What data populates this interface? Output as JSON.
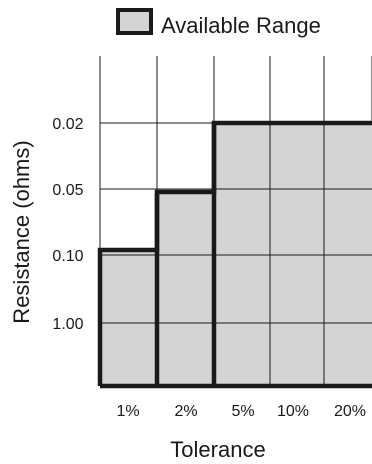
{
  "chart_data": {
    "type": "bar",
    "title": "",
    "legend": [
      "Available Range"
    ],
    "legend_placement": "top-center",
    "xlabel": "Tolerance",
    "ylabel": "Resistance (ohms)",
    "categories": [
      "1%",
      "2%",
      "5%",
      "10%",
      "20%"
    ],
    "y_tick_labels": [
      "0.02",
      "0.05",
      "0.10",
      "1.00"
    ],
    "series": [
      {
        "name": "Available Range",
        "values": [
          "0.10",
          "0.05",
          "0.02",
          "0.02",
          "0.02"
        ]
      }
    ],
    "grid": true,
    "colors": {
      "fill": "#d4d4d4",
      "outline": "#1a1a1a",
      "grid": "#1a1a1a"
    }
  }
}
